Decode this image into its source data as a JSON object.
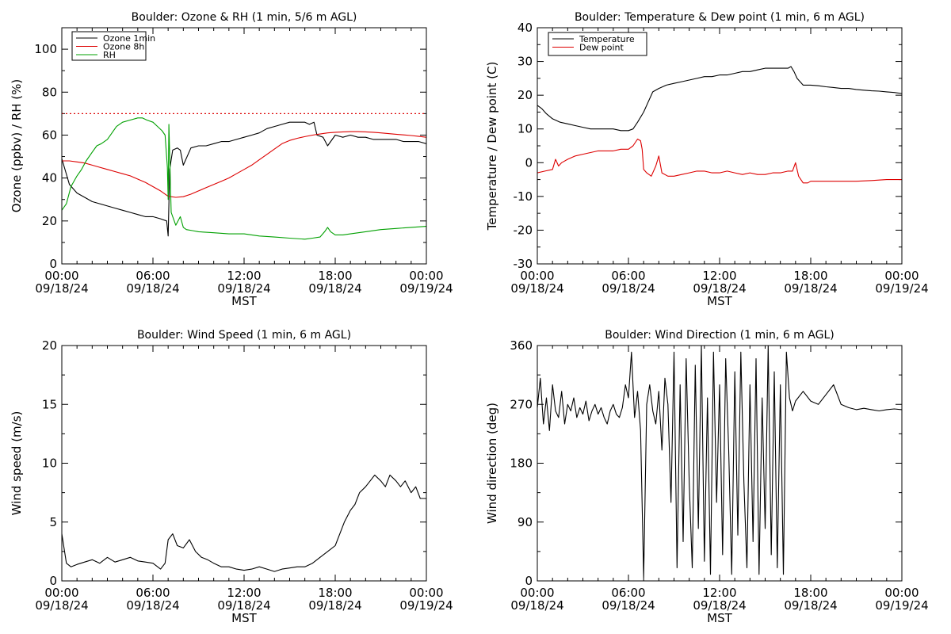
{
  "chart_data": [
    {
      "type": "line",
      "title": "Boulder: Ozone & RH (1 min, 5/6 m AGL)",
      "ylabel": "Ozone (ppbv) / RH (%)",
      "xlabel": "MST",
      "ylim": [
        0,
        110
      ],
      "yticks": [
        0,
        20,
        40,
        60,
        80,
        100
      ],
      "xlim": [
        0,
        24
      ],
      "xticks": [
        0,
        6,
        12,
        18,
        24
      ],
      "xtick_labels": [
        [
          "00:00",
          "09/18/24"
        ],
        [
          "06:00",
          "09/18/24"
        ],
        [
          "12:00",
          "09/18/24"
        ],
        [
          "18:00",
          "09/18/24"
        ],
        [
          "00:00",
          "09/19/24"
        ]
      ],
      "legend_position": "top-left",
      "reference_line": {
        "y": 70,
        "color": "#dd0000",
        "style": "dotted"
      },
      "series": [
        {
          "name": "Ozone 1min",
          "color": "#000000",
          "x": [
            0,
            0.25,
            0.5,
            1,
            1.5,
            2,
            2.5,
            3,
            3.5,
            4,
            4.5,
            5,
            5.5,
            6,
            6.5,
            6.9,
            7.0,
            7.1,
            7.3,
            7.6,
            7.8,
            8.0,
            8.5,
            9,
            9.5,
            10,
            10.5,
            11,
            11.5,
            12,
            12.5,
            13,
            13.5,
            14,
            14.5,
            15,
            15.5,
            16,
            16.3,
            16.6,
            16.8,
            17.2,
            17.5,
            18,
            18.5,
            19,
            19.5,
            20,
            20.5,
            21,
            21.5,
            22,
            22.5,
            23,
            23.5,
            24
          ],
          "values": [
            49,
            43,
            37,
            33,
            31,
            29,
            28,
            27,
            26,
            25,
            24,
            23,
            22,
            22,
            21,
            20,
            13,
            44,
            53,
            54,
            53,
            46,
            54,
            55,
            55,
            56,
            57,
            57,
            58,
            59,
            60,
            61,
            63,
            64,
            65,
            66,
            66,
            66,
            65,
            66,
            60,
            59,
            55,
            60,
            59,
            60,
            59,
            59,
            58,
            58,
            58,
            58,
            57,
            57,
            57,
            56
          ]
        },
        {
          "name": "Ozone 8h",
          "color": "#dd0000",
          "x": [
            0,
            0.5,
            1,
            1.5,
            2,
            2.5,
            3,
            3.5,
            4,
            4.5,
            5,
            5.5,
            6,
            6.5,
            7,
            7.5,
            8,
            8.5,
            9,
            9.5,
            10,
            10.5,
            11,
            11.5,
            12,
            12.5,
            13,
            13.5,
            14,
            14.5,
            15,
            15.5,
            16,
            16.5,
            17,
            17.5,
            18,
            18.5,
            19,
            19.5,
            20,
            20.5,
            21,
            21.5,
            22,
            22.5,
            23,
            23.5,
            24
          ],
          "values": [
            48,
            48,
            47.5,
            47,
            46,
            45,
            44,
            43,
            42,
            41,
            39.5,
            38,
            36,
            34,
            31.5,
            31,
            31.3,
            32.5,
            34,
            35.5,
            37,
            38.5,
            40,
            42,
            44,
            46,
            48.5,
            51,
            53.5,
            56,
            57.5,
            58.5,
            59.3,
            60,
            60.5,
            61,
            61.3,
            61.5,
            61.6,
            61.6,
            61.5,
            61.3,
            61,
            60.7,
            60.4,
            60.1,
            59.8,
            59.4,
            59
          ]
        },
        {
          "name": "RH",
          "color": "#00a000",
          "x": [
            0,
            0.3,
            0.6,
            1,
            1.3,
            1.6,
            2,
            2.3,
            2.6,
            3,
            3.3,
            3.6,
            4,
            4.5,
            5,
            5.3,
            5.6,
            6,
            6.3,
            6.6,
            6.8,
            6.95,
            7.0,
            7.05,
            7.2,
            7.5,
            7.8,
            8.0,
            8.2,
            8.6,
            9,
            10,
            11,
            12,
            12.5,
            13,
            14,
            15,
            16,
            16.5,
            17,
            17.3,
            17.5,
            17.7,
            18,
            18.5,
            19,
            20,
            21,
            22,
            23,
            24
          ],
          "values": [
            25,
            28,
            36,
            41,
            44,
            48,
            52,
            55,
            56,
            58,
            61,
            64,
            66,
            67,
            68,
            68,
            67,
            66,
            64,
            62,
            60,
            45,
            30,
            65,
            24,
            18,
            22,
            17,
            16,
            15.5,
            15,
            14.5,
            14,
            14,
            13.5,
            13,
            12.5,
            12,
            11.5,
            12,
            12.5,
            15,
            17,
            15,
            13.5,
            13.5,
            14,
            15,
            16,
            16.5,
            17,
            17.5
          ]
        }
      ]
    },
    {
      "type": "line",
      "title": "Boulder: Temperature & Dew point (1 min, 6 m AGL)",
      "ylabel": "Temperature / Dew point (C)",
      "xlabel": "MST",
      "ylim": [
        -30,
        40
      ],
      "yticks": [
        -30,
        -20,
        -10,
        0,
        10,
        20,
        30,
        40
      ],
      "xlim": [
        0,
        24
      ],
      "xticks": [
        0,
        6,
        12,
        18,
        24
      ],
      "xtick_labels": [
        [
          "00:00",
          "09/18/24"
        ],
        [
          "06:00",
          "09/18/24"
        ],
        [
          "12:00",
          "09/18/24"
        ],
        [
          "18:00",
          "09/18/24"
        ],
        [
          "00:00",
          "09/19/24"
        ]
      ],
      "legend_position": "top-left",
      "series": [
        {
          "name": "Temperature",
          "color": "#000000",
          "x": [
            0,
            0.3,
            0.6,
            1,
            1.5,
            2,
            2.5,
            3,
            3.5,
            4,
            4.5,
            5,
            5.5,
            6,
            6.3,
            6.6,
            7,
            7.3,
            7.6,
            8,
            8.5,
            9,
            9.5,
            10,
            10.5,
            11,
            11.5,
            12,
            12.5,
            13,
            13.5,
            14,
            14.5,
            15,
            15.5,
            16,
            16.5,
            16.7,
            16.9,
            17.1,
            17.5,
            18,
            18.5,
            19,
            19.5,
            20,
            20.5,
            21,
            21.5,
            22,
            22.5,
            23,
            23.5,
            24
          ],
          "values": [
            17,
            16,
            14.5,
            13,
            12,
            11.5,
            11,
            10.5,
            10,
            10,
            10,
            10,
            9.5,
            9.5,
            10,
            12,
            15,
            18,
            21,
            22,
            23,
            23.5,
            24,
            24.5,
            25,
            25.5,
            25.5,
            26,
            26,
            26.5,
            27,
            27,
            27.5,
            28,
            28,
            28,
            28,
            28.5,
            27,
            25,
            23,
            23,
            22.8,
            22.5,
            22.3,
            22,
            22,
            21.7,
            21.5,
            21.3,
            21.2,
            21,
            20.8,
            20.5
          ]
        },
        {
          "name": "Dew point",
          "color": "#dd0000",
          "x": [
            0,
            0.5,
            1,
            1.2,
            1.4,
            1.6,
            2,
            2.5,
            3,
            3.5,
            4,
            4.5,
            5,
            5.5,
            6,
            6.3,
            6.6,
            6.8,
            6.9,
            7.0,
            7.2,
            7.5,
            7.8,
            8.0,
            8.2,
            8.6,
            9,
            9.5,
            10,
            10.5,
            11,
            11.5,
            12,
            12.5,
            13,
            13.5,
            14,
            14.5,
            15,
            15.5,
            16,
            16.5,
            16.8,
            17.0,
            17.2,
            17.5,
            17.8,
            18,
            18.5,
            19,
            19.5,
            20,
            21,
            22,
            23,
            24
          ],
          "values": [
            -3,
            -2.5,
            -2,
            1,
            -1,
            0,
            1,
            2,
            2.5,
            3,
            3.5,
            3.5,
            3.5,
            4,
            4,
            5,
            7,
            6.5,
            4,
            -2,
            -3,
            -4,
            -1,
            2,
            -3,
            -4,
            -4,
            -3.5,
            -3,
            -2.5,
            -2.5,
            -3,
            -3,
            -2.5,
            -3,
            -3.5,
            -3,
            -3.5,
            -3.5,
            -3,
            -3,
            -2.5,
            -2.5,
            0,
            -4,
            -6,
            -6,
            -5.5,
            -5.5,
            -5.5,
            -5.5,
            -5.5,
            -5.5,
            -5.3,
            -5,
            -5
          ]
        }
      ]
    },
    {
      "type": "line",
      "title": "Boulder: Wind Speed (1 min, 6 m AGL)",
      "ylabel": "Wind speed (m/s)",
      "xlabel": "MST",
      "ylim": [
        0,
        20
      ],
      "yticks": [
        0,
        5,
        10,
        15,
        20
      ],
      "xlim": [
        0,
        24
      ],
      "xticks": [
        0,
        6,
        12,
        18,
        24
      ],
      "xtick_labels": [
        [
          "00:00",
          "09/18/24"
        ],
        [
          "06:00",
          "09/18/24"
        ],
        [
          "12:00",
          "09/18/24"
        ],
        [
          "18:00",
          "09/18/24"
        ],
        [
          "00:00",
          "09/19/24"
        ]
      ],
      "series": [
        {
          "name": "",
          "color": "#000000",
          "x": [
            0,
            0.3,
            0.6,
            1,
            1.5,
            2,
            2.5,
            3,
            3.5,
            4,
            4.5,
            5,
            5.5,
            6,
            6.5,
            6.8,
            7.0,
            7.3,
            7.6,
            8,
            8.4,
            8.8,
            9.2,
            9.6,
            10,
            10.5,
            11,
            11.5,
            12,
            12.5,
            13,
            13.5,
            14,
            14.5,
            15,
            15.5,
            16,
            16.5,
            17,
            17.5,
            18,
            18.3,
            18.6,
            19,
            19.3,
            19.6,
            20,
            20.3,
            20.6,
            21,
            21.3,
            21.6,
            22,
            22.3,
            22.6,
            23,
            23.3,
            23.6,
            24
          ],
          "values": [
            4,
            1.5,
            1.2,
            1.4,
            1.6,
            1.8,
            1.5,
            2,
            1.6,
            1.8,
            2,
            1.7,
            1.6,
            1.5,
            1,
            1.5,
            3.5,
            4,
            3,
            2.8,
            3.5,
            2.5,
            2,
            1.8,
            1.5,
            1.2,
            1.2,
            1.0,
            0.9,
            1.0,
            1.2,
            1.0,
            0.8,
            1.0,
            1.1,
            1.2,
            1.2,
            1.5,
            2.0,
            2.5,
            3,
            4,
            5,
            6,
            6.5,
            7.5,
            8,
            8.5,
            9,
            8.5,
            8,
            9,
            8.5,
            8,
            8.5,
            7.5,
            8,
            7,
            7
          ]
        }
      ]
    },
    {
      "type": "line",
      "title": "Boulder: Wind Direction (1 min, 6 m AGL)",
      "ylabel": "Wind direction (deg)",
      "xlabel": "MST",
      "ylim": [
        0,
        360
      ],
      "yticks": [
        0,
        90,
        180,
        270,
        360
      ],
      "xlim": [
        0,
        24
      ],
      "xticks": [
        0,
        6,
        12,
        18,
        24
      ],
      "xtick_labels": [
        [
          "00:00",
          "09/18/24"
        ],
        [
          "06:00",
          "09/18/24"
        ],
        [
          "12:00",
          "09/18/24"
        ],
        [
          "18:00",
          "09/18/24"
        ],
        [
          "00:00",
          "09/19/24"
        ]
      ],
      "series": [
        {
          "name": "",
          "color": "#000000",
          "x": [
            0,
            0.2,
            0.4,
            0.6,
            0.8,
            1.0,
            1.2,
            1.4,
            1.6,
            1.8,
            2.0,
            2.2,
            2.4,
            2.6,
            2.8,
            3.0,
            3.2,
            3.4,
            3.6,
            3.8,
            4.0,
            4.2,
            4.4,
            4.6,
            4.8,
            5.0,
            5.2,
            5.4,
            5.6,
            5.8,
            6.0,
            6.2,
            6.4,
            6.6,
            6.8,
            7.0,
            7.2,
            7.4,
            7.6,
            7.8,
            8.0,
            8.2,
            8.4,
            8.6,
            8.8,
            9.0,
            9.2,
            9.4,
            9.6,
            9.8,
            10.0,
            10.2,
            10.4,
            10.6,
            10.8,
            11.0,
            11.2,
            11.4,
            11.6,
            11.8,
            12.0,
            12.2,
            12.4,
            12.6,
            12.8,
            13.0,
            13.2,
            13.4,
            13.6,
            13.8,
            14.0,
            14.2,
            14.4,
            14.6,
            14.8,
            15.0,
            15.2,
            15.4,
            15.6,
            15.8,
            16.0,
            16.2,
            16.4,
            16.6,
            16.8,
            17.0,
            17.5,
            18.0,
            18.5,
            19.0,
            19.5,
            20.0,
            20.5,
            21.0,
            21.5,
            22.0,
            22.5,
            23.0,
            23.5,
            24.0
          ],
          "values": [
            265,
            310,
            240,
            280,
            230,
            300,
            260,
            250,
            290,
            240,
            270,
            260,
            280,
            250,
            265,
            255,
            275,
            245,
            260,
            270,
            255,
            265,
            250,
            240,
            260,
            270,
            255,
            250,
            265,
            300,
            280,
            350,
            250,
            290,
            230,
            5,
            270,
            300,
            260,
            240,
            290,
            200,
            310,
            270,
            120,
            350,
            20,
            300,
            60,
            340,
            150,
            20,
            330,
            80,
            360,
            30,
            280,
            10,
            350,
            120,
            300,
            40,
            340,
            200,
            10,
            320,
            70,
            350,
            150,
            20,
            300,
            60,
            340,
            10,
            280,
            80,
            360,
            40,
            320,
            20,
            300,
            10,
            350,
            280,
            260,
            275,
            290,
            275,
            270,
            285,
            300,
            270,
            265,
            262,
            264,
            262,
            260,
            262,
            263,
            262
          ]
        }
      ]
    }
  ]
}
